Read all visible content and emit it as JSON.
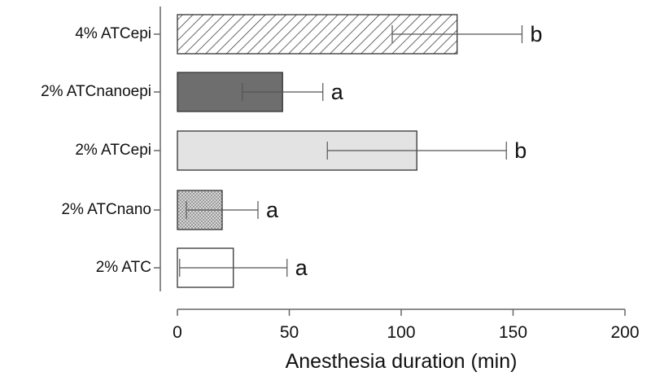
{
  "chart_data": {
    "type": "bar",
    "orientation": "horizontal",
    "title": "",
    "xlabel": "Anesthesia duration (min)",
    "ylabel": "",
    "xlim": [
      0,
      200
    ],
    "xticks": [
      0,
      50,
      100,
      150,
      200
    ],
    "grid": false,
    "categories": [
      "4% ATCepi",
      "2% ATCnanoepi",
      "2% ATCepi",
      "2% ATCnano",
      "2% ATC"
    ],
    "values": [
      125,
      47,
      107,
      20,
      25
    ],
    "error": [
      29,
      18,
      40,
      16,
      24
    ],
    "significance": [
      "b",
      "a",
      "b",
      "a",
      "a"
    ],
    "fills": [
      "hatch-diagonal",
      "solid-dark",
      "solid-light",
      "crosshatch",
      "empty"
    ],
    "colors": {
      "dark": "#6e6e6e",
      "light": "#e3e3e3",
      "hatch": "#444444",
      "crosshatch": "#a9a9a9",
      "empty": "#ffffff"
    }
  }
}
